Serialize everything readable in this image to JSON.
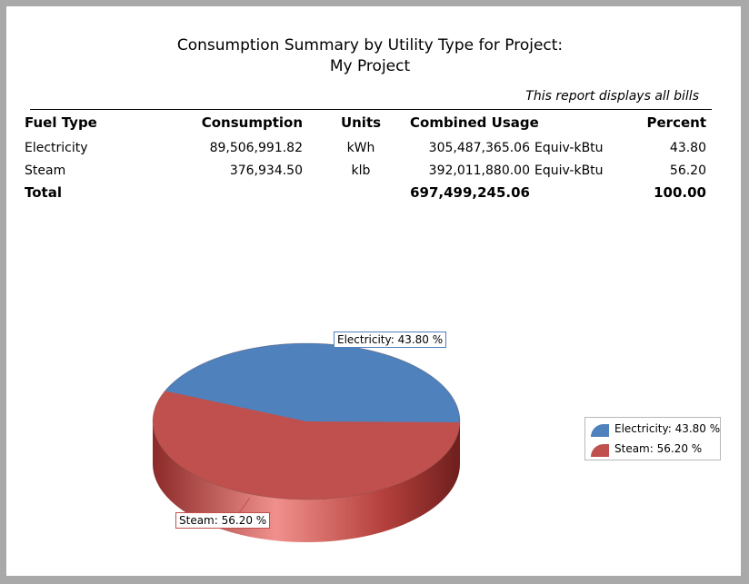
{
  "report": {
    "title_line1": "Consumption Summary by Utility Type for Project:",
    "title_line2": "My Project",
    "note": "This report displays all bills"
  },
  "table": {
    "headers": {
      "fuel_type": "Fuel Type",
      "consumption": "Consumption",
      "units": "Units",
      "combined_usage": "Combined Usage",
      "percent": "Percent"
    },
    "rows": [
      {
        "fuel_type": "Electricity",
        "consumption": "89,506,991.82",
        "units": "kWh",
        "combined_usage": "305,487,365.06",
        "combined_units": "Equiv-kBtu",
        "percent": "43.80"
      },
      {
        "fuel_type": "Steam",
        "consumption": "376,934.50",
        "units": "klb",
        "combined_usage": "392,011,880.00",
        "combined_units": "Equiv-kBtu",
        "percent": "56.20"
      }
    ],
    "total": {
      "label": "Total",
      "combined_usage": "697,499,245.06",
      "percent": "100.00"
    }
  },
  "chart_data": {
    "type": "pie",
    "slices": [
      {
        "label": "Electricity",
        "value": 43.8,
        "color": "#4f81bd",
        "display": "Electricity: 43.80 %"
      },
      {
        "label": "Steam",
        "value": 56.2,
        "color": "#c0504d",
        "display": "Steam: 56.20 %"
      }
    ],
    "legend_position": "right"
  }
}
